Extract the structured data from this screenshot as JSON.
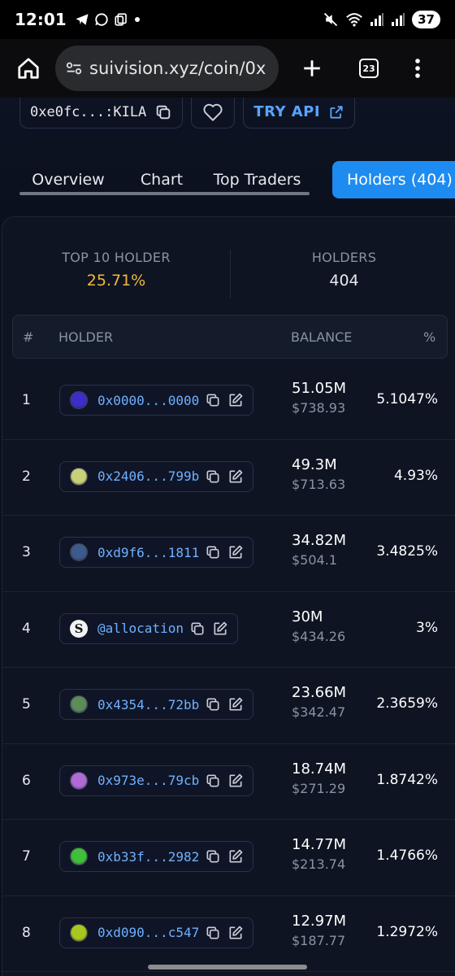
{
  "status_bar": {
    "time": "12:01",
    "battery": "37"
  },
  "browser": {
    "url": "suivision.xyz/coin/0x",
    "tab_count": "23"
  },
  "coin": {
    "id": "0xe0fc...:KILA",
    "try_api_label": "TRY API"
  },
  "tabs": [
    {
      "label": "Overview"
    },
    {
      "label": "Chart"
    },
    {
      "label": "Top Traders"
    },
    {
      "label": "Holders (404)",
      "active": true
    }
  ],
  "summary": {
    "top10_label": "TOP 10 HOLDER",
    "top10_value": "25.71%",
    "holders_label": "HOLDERS",
    "holders_value": "404"
  },
  "table": {
    "headers": {
      "rank": "#",
      "holder": "HOLDER",
      "balance": "BALANCE",
      "percent": "%"
    },
    "rows": [
      {
        "rank": "1",
        "address": "0x0000...0000",
        "balance": "51.05M",
        "usd": "$738.93",
        "percent": "5.1047%",
        "avatar_color": "#3b2fc9"
      },
      {
        "rank": "2",
        "address": "0x2406...799b",
        "balance": "49.3M",
        "usd": "$713.63",
        "percent": "4.93%",
        "avatar_color": "#c9d07a"
      },
      {
        "rank": "3",
        "address": "0xd9f6...1811",
        "balance": "34.82M",
        "usd": "$504.1",
        "percent": "3.4825%",
        "avatar_color": "#3d5a8c"
      },
      {
        "rank": "4",
        "address": "@allocation",
        "balance": "30M",
        "usd": "$434.26",
        "percent": "3%",
        "avatar_color": "#f2f2f2"
      },
      {
        "rank": "5",
        "address": "0x4354...72bb",
        "balance": "23.66M",
        "usd": "$342.47",
        "percent": "2.3659%",
        "avatar_color": "#5b8c5a"
      },
      {
        "rank": "6",
        "address": "0x973e...79cb",
        "balance": "18.74M",
        "usd": "$271.29",
        "percent": "1.8742%",
        "avatar_color": "#b06ad6"
      },
      {
        "rank": "7",
        "address": "0xb33f...2982",
        "balance": "14.77M",
        "usd": "$213.74",
        "percent": "1.4766%",
        "avatar_color": "#3fbf3a"
      },
      {
        "rank": "8",
        "address": "0xd090...c547",
        "balance": "12.97M",
        "usd": "$187.77",
        "percent": "1.2972%",
        "avatar_color": "#a8c81f"
      }
    ]
  }
}
